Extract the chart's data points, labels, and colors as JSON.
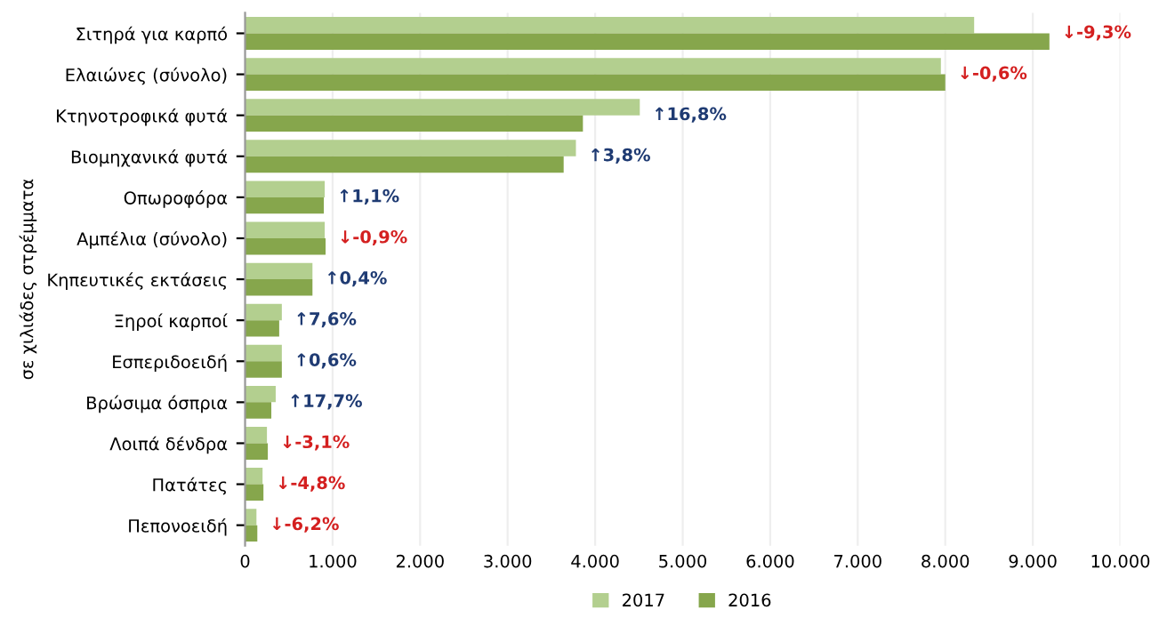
{
  "chart_data": {
    "type": "bar",
    "orientation": "horizontal",
    "ylabel": "σε χιλιάδες στρέμματα",
    "categories": [
      "Σιτηρά για καρπό",
      "Ελαιώνες (σύνολο)",
      "Κτηνοτροφικά φυτά",
      "Βιομηχανικά φυτά",
      "Οπωροφόρα",
      "Αμπέλια (σύνολο)",
      "Κηπευτικές εκτάσεις",
      "Ξηροί καρποί",
      "Εσπεριδοειδή",
      "Βρώσιμα όσπρια",
      "Λοιπά δένδρα",
      "Πατάτες",
      "Πεπονοειδή"
    ],
    "series": [
      {
        "name": "2017",
        "color": "#b3cf8f",
        "values": [
          8330,
          7950,
          4510,
          3780,
          910,
          910,
          770,
          420,
          420,
          350,
          250,
          200,
          130
        ]
      },
      {
        "name": "2016",
        "color": "#86a64c",
        "values": [
          9190,
          8000,
          3860,
          3640,
          900,
          920,
          770,
          390,
          420,
          300,
          260,
          210,
          140
        ]
      }
    ],
    "xlim": [
      0,
      10000
    ],
    "xticks": [
      0,
      {
        "value": 1000,
        "label": "1.000"
      },
      {
        "value": 2000,
        "label": "2.000"
      },
      {
        "value": 3000,
        "label": "3.000"
      },
      {
        "value": 4000,
        "label": "4.000"
      },
      {
        "value": 5000,
        "label": "5.000"
      },
      {
        "value": 6000,
        "label": "6.000"
      },
      {
        "value": 7000,
        "label": "7.000"
      },
      {
        "value": 8000,
        "label": "8.000"
      },
      {
        "value": 9000,
        "label": "9.000"
      },
      {
        "value": 10000,
        "label": "10.000"
      }
    ],
    "grid": "x",
    "legend": "bottom",
    "annotations": [
      {
        "text": "↓-9,3%",
        "x": 9190,
        "y": "Σιτηρά για καρπό"
      },
      {
        "text": "↓-0,6%",
        "x": 8000,
        "y": "Ελαιώνες (σύνολο)"
      },
      {
        "text": "↑16,8%",
        "x": 4510,
        "y": "Κτηνοτροφικά φυτά"
      },
      {
        "text": "↑3,8%",
        "x": 3780,
        "y": "Βιομηχανικά φυτά"
      },
      {
        "text": "↑1,1%",
        "x": 910,
        "y": "Οπωροφόρα"
      },
      {
        "text": "↓-0,9%",
        "x": 920,
        "y": "Αμπέλια (σύνολο)"
      },
      {
        "text": "↑0,4%",
        "x": 770,
        "y": "Κηπευτικές εκτάσεις"
      },
      {
        "text": "↑7,6%",
        "x": 420,
        "y": "Ξηροί καρποί"
      },
      {
        "text": "↑0,6%",
        "x": 420,
        "y": "Εσπεριδοειδή"
      },
      {
        "text": "↑17,7%",
        "x": 350,
        "y": "Βρώσιμα όσπρια"
      },
      {
        "text": "↓-3,1%",
        "x": 260,
        "y": "Λοιπά δένδρα"
      },
      {
        "text": "↓-4,8%",
        "x": 210,
        "y": "Πατάτες"
      },
      {
        "text": "↓-6,2%",
        "x": 140,
        "y": "Πεπονοειδή"
      }
    ]
  }
}
